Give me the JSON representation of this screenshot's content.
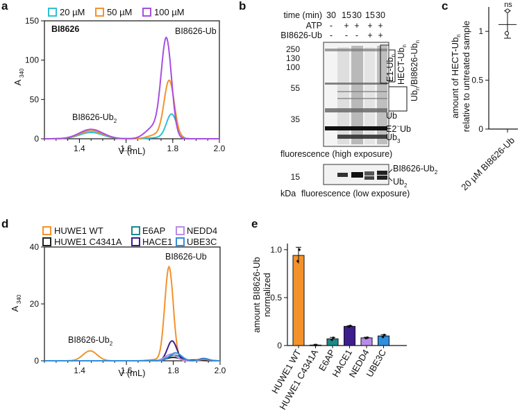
{
  "panels": {
    "a": "a",
    "b": "b",
    "c": "c",
    "d": "d",
    "e": "e"
  },
  "chart_data": [
    {
      "id": "a",
      "type": "line",
      "title": "BI8626",
      "xlabel": "V (mL)",
      "ylabel": "A340",
      "ylabel_main": "A",
      "ylabel_sub": "340",
      "xlim": [
        1.25,
        2.0
      ],
      "ylim": [
        0,
        150
      ],
      "xticks": [
        1.4,
        1.6,
        1.8,
        2.0
      ],
      "xtick_labels": [
        "1.4",
        "1.6",
        "1.8",
        "2.0"
      ],
      "yticks": [
        0,
        50,
        100,
        150
      ],
      "ytick_labels": [
        "0",
        "50",
        "100",
        "150"
      ],
      "legend": "top",
      "annotations": {
        "dimer_main": "BI8626-Ub",
        "dimer_sub": "2",
        "mono": "BI8626-Ub"
      },
      "series": [
        {
          "name": "20 µM",
          "color": "#2fbfd6",
          "peaks": [
            {
              "x": 1.45,
              "h": 8,
              "w": 0.05
            },
            {
              "x": 1.795,
              "h": 31,
              "w": 0.022
            },
            {
              "x": 1.74,
              "h": 1.5,
              "w": 0.04
            }
          ]
        },
        {
          "name": "50 µM",
          "color": "#f3922a",
          "peaks": [
            {
              "x": 1.45,
              "h": 10,
              "w": 0.05
            },
            {
              "x": 1.785,
              "h": 73,
              "w": 0.022
            },
            {
              "x": 1.73,
              "h": 5,
              "w": 0.035
            }
          ]
        },
        {
          "name": "100 µM",
          "color": "#a64ee0",
          "peaks": [
            {
              "x": 1.45,
              "h": 12,
              "w": 0.05
            },
            {
              "x": 1.773,
              "h": 124,
              "w": 0.022
            },
            {
              "x": 1.72,
              "h": 15,
              "w": 0.035
            }
          ]
        }
      ]
    },
    {
      "id": "c",
      "type": "scatter",
      "ylabel_line1_main": "amount of HECT-Ub",
      "ylabel_line1_sub": "n",
      "ylabel_line2": "relative to untreated sample",
      "ylim": [
        0,
        1.25
      ],
      "yticks": [
        0,
        0.5,
        1
      ],
      "ytick_labels": [
        "0",
        "0.5",
        "1"
      ],
      "categories": [
        "20 µM BI8626-Ub"
      ],
      "points": [
        1.21,
        0.98
      ],
      "mean": 1.07,
      "error": 0.14,
      "significance": "ns"
    },
    {
      "id": "d",
      "type": "line",
      "xlabel": "V (mL)",
      "ylabel": "A340",
      "ylabel_main": "A",
      "ylabel_sub": "340",
      "xlim": [
        1.25,
        2.0
      ],
      "ylim": [
        0,
        40
      ],
      "xticks": [
        1.4,
        1.6,
        1.8,
        2.0
      ],
      "xtick_labels": [
        "1.4",
        "1.6",
        "1.8",
        "2.0"
      ],
      "yticks": [
        0,
        20,
        40
      ],
      "ytick_labels": [
        "0",
        "20",
        "40"
      ],
      "legend": "top",
      "annotations": {
        "dimer_main": "BI8626-Ub",
        "dimer_sub": "2",
        "mono": "BI8626-Ub"
      },
      "series": [
        {
          "name": "HUWE1 WT",
          "color": "#f3922a",
          "peaks": [
            {
              "x": 1.445,
              "h": 3.5,
              "w": 0.03
            },
            {
              "x": 1.782,
              "h": 33,
              "w": 0.018
            },
            {
              "x": 1.72,
              "h": 0.4,
              "w": 0.03
            }
          ]
        },
        {
          "name": "HUWE1 C4341A",
          "color": "#222222",
          "peaks": [
            {
              "x": 1.8,
              "h": 1.2,
              "w": 0.03
            },
            {
              "x": 1.9,
              "h": 0.3,
              "w": 0.03
            }
          ]
        },
        {
          "name": "E6AP",
          "color": "#1a8a8a",
          "peaks": [
            {
              "x": 1.805,
              "h": 2.0,
              "w": 0.03
            },
            {
              "x": 1.93,
              "h": 0.6,
              "w": 0.02
            }
          ]
        },
        {
          "name": "HACE1",
          "color": "#3c1e8c",
          "peaks": [
            {
              "x": 1.795,
              "h": 7,
              "w": 0.02
            },
            {
              "x": 1.93,
              "h": 0.8,
              "w": 0.02
            }
          ]
        },
        {
          "name": "NEDD4",
          "color": "#b98be8",
          "peaks": [
            {
              "x": 1.79,
              "h": 2.3,
              "w": 0.025
            },
            {
              "x": 1.93,
              "h": 0.5,
              "w": 0.02
            }
          ]
        },
        {
          "name": "UBE3C",
          "color": "#2e8fe0",
          "peaks": [
            {
              "x": 1.81,
              "h": 2.8,
              "w": 0.025
            },
            {
              "x": 1.93,
              "h": 0.7,
              "w": 0.02
            }
          ]
        }
      ]
    },
    {
      "id": "e",
      "type": "bar",
      "ylabel_line1": "amount BI8626-Ub",
      "ylabel_line2": "normalized",
      "ylim": [
        0,
        1.1
      ],
      "yticks": [
        0,
        0.5,
        1.0
      ],
      "ytick_labels": [
        "0",
        "0.5",
        "1.0"
      ],
      "categories": [
        "HUWE1 WT",
        "HUWE1 C4341A",
        "E6AP",
        "HACE1",
        "NEDD4",
        "UBE3C"
      ],
      "values": [
        0.94,
        0.005,
        0.07,
        0.2,
        0.08,
        0.1
      ],
      "errors": [
        0.085,
        0.002,
        0.015,
        0.007,
        0.006,
        0.012
      ],
      "points": [
        [
          0.88,
          1.0
        ],
        [
          0.005,
          0.005
        ],
        [
          0.06,
          0.08
        ],
        [
          0.195,
          0.205
        ],
        [
          0.078,
          0.082
        ],
        [
          0.09,
          0.11
        ]
      ],
      "colors": [
        "#f3922a",
        "#222222",
        "#1a8a8a",
        "#3c1e8c",
        "#b98be8",
        "#2e8fe0"
      ]
    }
  ],
  "gel": {
    "time_label": "time (min)",
    "time_values": [
      "30",
      "15",
      "30",
      "15",
      "30"
    ],
    "atp_label": "ATP",
    "atp_values": [
      "-",
      "+",
      "+",
      "+",
      "+"
    ],
    "compound_label": "BI8626-Ub",
    "compound_values": [
      "-",
      "-",
      "-",
      "+",
      "+"
    ],
    "markers": [
      "250",
      "130",
      "100",
      "55",
      "35"
    ],
    "low_marker": "15",
    "kda": "kDa",
    "high_caption": "fluorescence (high exposure)",
    "low_caption": "fluorescence (low exposure)",
    "band_labels": {
      "e1_main": "E1-Ub",
      "e1_sub": "n",
      "hect_main": "HECT-Ub",
      "hect_sub": "n",
      "ubn_a": "Ub",
      "ubn_sub": "n",
      "ubn_b": "/BI8626-Ub",
      "ubn_sub2": "n",
      "ub": "Ub",
      "e2_main": "E2",
      "e2_sup": "~",
      "e2_end": "Ub",
      "ub3_main": "Ub",
      "ub3_sub": "3",
      "bi_ub2_main": "BI8626-Ub",
      "bi_ub2_sub": "2",
      "ub2_main": "Ub",
      "ub2_sub": "2"
    }
  }
}
